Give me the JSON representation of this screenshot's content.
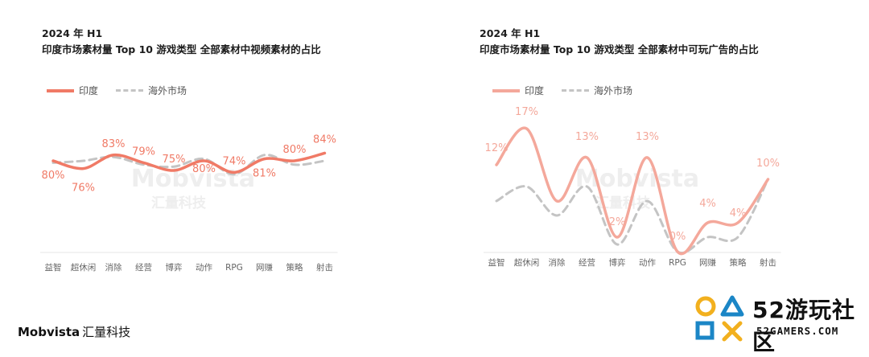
{
  "colors": {
    "india_left": "#f07a66",
    "india_right": "#f4a89b",
    "overseas": "#c4c4c4",
    "axis_text": "#666666",
    "watermark": "#eeeeee",
    "site_yellow": "#f2b01e",
    "site_blue": "#1b86c6"
  },
  "chart_data": [
    {
      "type": "line",
      "title": "2024 年 H1",
      "subtitle": "印度市场素材量 Top 10 游戏类型  全部素材中视频素材的占比",
      "categories": [
        "益智",
        "超休闲",
        "消除",
        "经营",
        "博弈",
        "动作",
        "RPG",
        "网赚",
        "策略",
        "射击"
      ],
      "series": [
        {
          "name": "印度",
          "values": [
            80,
            76,
            83,
            79,
            75,
            80,
            74,
            81,
            80,
            84
          ],
          "labels": [
            "80%",
            "76%",
            "83%",
            "79%",
            "75%",
            "80%",
            "74%",
            "81%",
            "80%",
            "84%"
          ]
        },
        {
          "name": "海外市场",
          "values": [
            79,
            80,
            82,
            78,
            77,
            81,
            73,
            83,
            78,
            80
          ]
        }
      ],
      "ylim": [
        0,
        100
      ],
      "legend": "top-left",
      "grid": false,
      "watermark": [
        "Mobvista",
        "汇量科技"
      ]
    },
    {
      "type": "line",
      "title": "2024 年 H1",
      "subtitle": "印度市场素材量 Top 10 游戏类型  全部素材中可玩广告的占比",
      "categories": [
        "益智",
        "超休闲",
        "消除",
        "经营",
        "博弈",
        "动作",
        "RPG",
        "网赚",
        "策略",
        "射击"
      ],
      "series": [
        {
          "name": "印度",
          "values": [
            12,
            17,
            7,
            13,
            2,
            13,
            0,
            4,
            4,
            10
          ],
          "labels": [
            "12%",
            "17%",
            "",
            "13%",
            "2%",
            "13%",
            "0%",
            "4%",
            "4%",
            ""
          ]
        },
        {
          "name": "海外市场",
          "values": [
            7,
            9,
            5,
            9,
            1,
            7,
            0,
            2,
            2,
            10
          ]
        }
      ],
      "ylim": [
        0,
        20
      ],
      "legend": "top-left",
      "grid": false,
      "watermark": [
        "Mobvista",
        "汇量科技"
      ],
      "extra_labels": [
        {
          "text": "10%"
        }
      ]
    }
  ],
  "footer": {
    "brand": "Mobvista",
    "brand_cn": "汇量科技"
  },
  "site": {
    "name_big": "52游玩社区",
    "name_small": "52GAMERS.COM"
  }
}
